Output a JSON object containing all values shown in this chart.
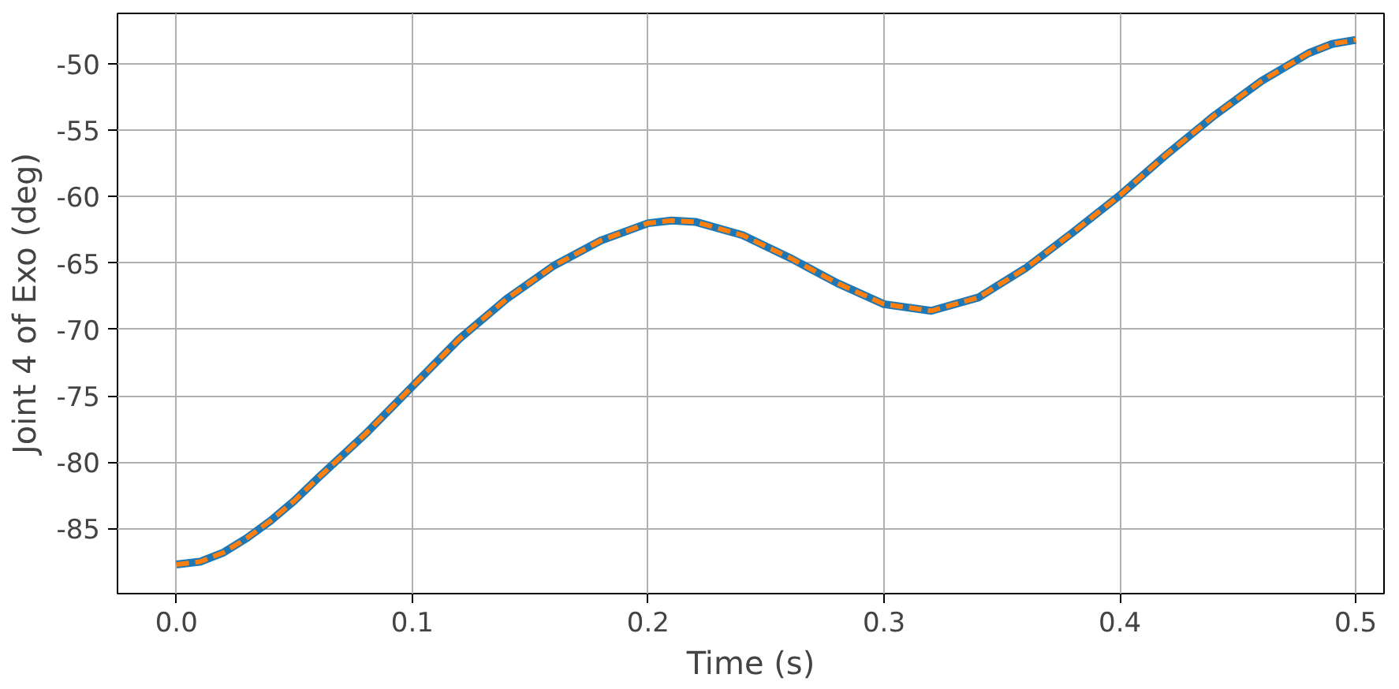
{
  "chart_data": {
    "type": "line",
    "xlabel": "Time (s)",
    "ylabel": "Joint 4 of Exo (deg)",
    "x": [
      0.0,
      0.01,
      0.02,
      0.03,
      0.04,
      0.05,
      0.06,
      0.08,
      0.1,
      0.12,
      0.14,
      0.16,
      0.18,
      0.2,
      0.21,
      0.22,
      0.24,
      0.26,
      0.28,
      0.3,
      0.32,
      0.34,
      0.36,
      0.38,
      0.4,
      0.42,
      0.44,
      0.46,
      0.48,
      0.49,
      0.5
    ],
    "series": [
      {
        "color": "#1f77b4",
        "line_style": "solid",
        "values": [
          -87.7,
          -87.5,
          -86.8,
          -85.7,
          -84.4,
          -82.9,
          -81.2,
          -77.9,
          -74.3,
          -70.7,
          -67.7,
          -65.2,
          -63.3,
          -62.0,
          -61.8,
          -61.9,
          -62.9,
          -64.6,
          -66.5,
          -68.1,
          -68.6,
          -67.6,
          -65.4,
          -62.7,
          -59.9,
          -56.8,
          -53.9,
          -51.3,
          -49.2,
          -48.5,
          -48.2
        ]
      },
      {
        "color": "#ff7f0e",
        "line_style": "dashed",
        "values": [
          -87.7,
          -87.5,
          -86.8,
          -85.7,
          -84.4,
          -82.9,
          -81.2,
          -77.9,
          -74.3,
          -70.7,
          -67.7,
          -65.2,
          -63.3,
          -62.0,
          -61.8,
          -61.9,
          -62.9,
          -64.6,
          -66.5,
          -68.1,
          -68.6,
          -67.6,
          -65.4,
          -62.7,
          -59.9,
          -56.8,
          -53.9,
          -51.3,
          -49.2,
          -48.5,
          -48.2
        ]
      }
    ],
    "xlim": [
      -0.025,
      0.512
    ],
    "ylim": [
      -89.9,
      -46.2
    ],
    "xticks": [
      {
        "value": 0,
        "label": "0.0"
      },
      {
        "value": 0.1,
        "label": "0.1"
      },
      {
        "value": 0.2,
        "label": "0.2"
      },
      {
        "value": 0.3,
        "label": "0.3"
      },
      {
        "value": 0.4,
        "label": "0.4"
      },
      {
        "value": 0.5,
        "label": "0.5"
      }
    ],
    "yticks": [
      -85,
      -80,
      -75,
      -70,
      -65,
      -60,
      -55,
      -50
    ],
    "grid": true
  }
}
